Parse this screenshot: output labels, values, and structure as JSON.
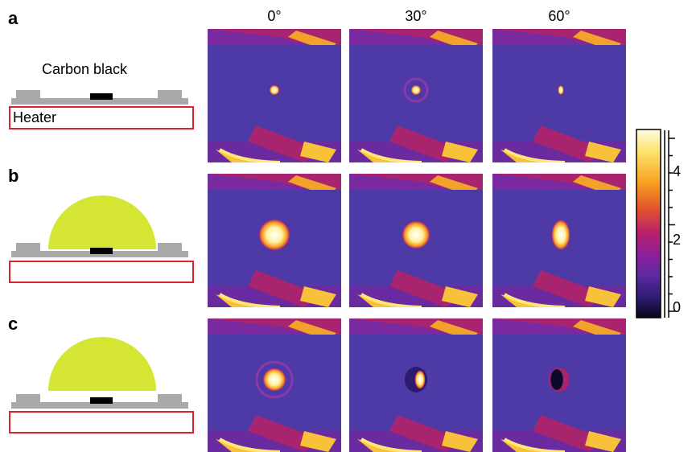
{
  "panels": {
    "a": {
      "letter": "a",
      "label_top": "Carbon black",
      "heater_label": "Heater"
    },
    "b": {
      "letter": "b"
    },
    "c": {
      "letter": "c"
    }
  },
  "columns": [
    "0°",
    "30°",
    "60°"
  ],
  "colorbar": {
    "ticks": [
      "4",
      "2",
      "0"
    ],
    "colors": [
      "#fffbe0",
      "#fde26a",
      "#f7a223",
      "#e4532c",
      "#b7216c",
      "#8a1f9a",
      "#5a2aa0",
      "#2c1b6e",
      "#06051a"
    ]
  },
  "colors": {
    "heater_box": "#d9252a",
    "substrate": "#a9a9a9",
    "carbon": "#000000",
    "droplet": "#d4e534"
  }
}
